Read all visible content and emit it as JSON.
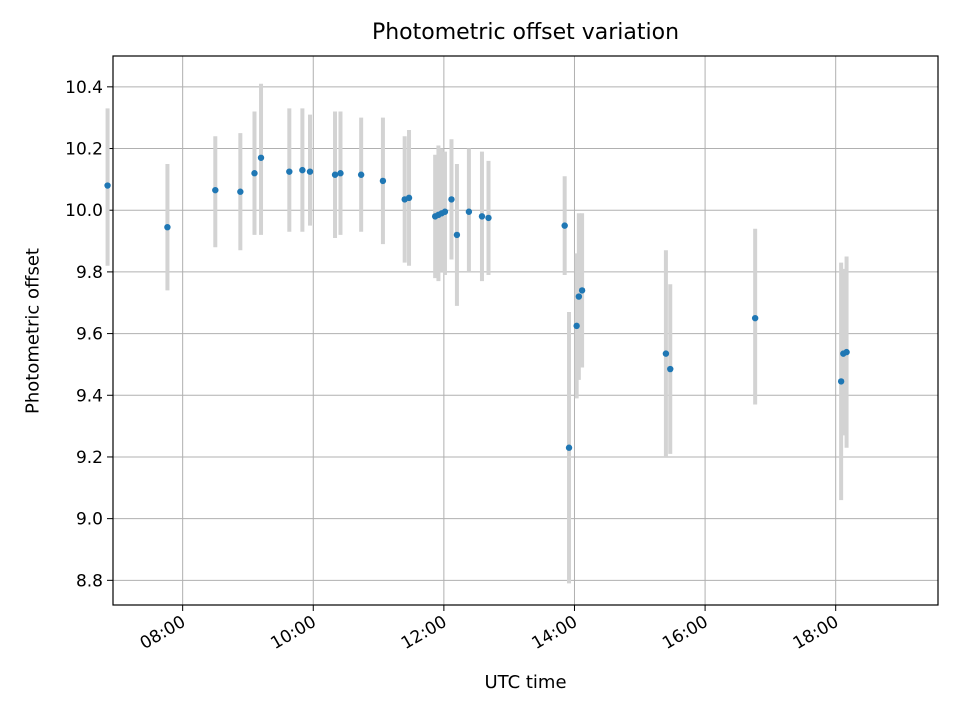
{
  "chart_data": {
    "type": "scatter",
    "title": "Photometric offset variation",
    "xlabel": "UTC time",
    "ylabel": "Photometric offset",
    "xlim": [
      "06:56",
      "19:34"
    ],
    "ylim": [
      8.72,
      10.5
    ],
    "x_ticks": [
      "08:00",
      "10:00",
      "12:00",
      "14:00",
      "16:00",
      "18:00"
    ],
    "y_ticks": [
      "8.8",
      "9.0",
      "9.2",
      "9.4",
      "9.6",
      "9.8",
      "10.0",
      "10.2",
      "10.4"
    ],
    "grid": true,
    "marker_color": "#1f77b4",
    "errorbar_color": "#d3d3d3",
    "points": [
      {
        "x": "06:51",
        "y": 10.08,
        "ylow": 9.82,
        "yhigh": 10.33
      },
      {
        "x": "07:46",
        "y": 9.945,
        "ylow": 9.74,
        "yhigh": 10.15
      },
      {
        "x": "08:30",
        "y": 10.065,
        "ylow": 9.88,
        "yhigh": 10.24
      },
      {
        "x": "08:53",
        "y": 10.06,
        "ylow": 9.87,
        "yhigh": 10.25
      },
      {
        "x": "09:06",
        "y": 10.12,
        "ylow": 9.92,
        "yhigh": 10.32
      },
      {
        "x": "09:12",
        "y": 10.17,
        "ylow": 9.92,
        "yhigh": 10.41
      },
      {
        "x": "09:38",
        "y": 10.125,
        "ylow": 9.93,
        "yhigh": 10.33
      },
      {
        "x": "09:50",
        "y": 10.13,
        "ylow": 9.93,
        "yhigh": 10.33
      },
      {
        "x": "09:57",
        "y": 10.125,
        "ylow": 9.95,
        "yhigh": 10.31
      },
      {
        "x": "10:20",
        "y": 10.115,
        "ylow": 9.91,
        "yhigh": 10.32
      },
      {
        "x": "10:25",
        "y": 10.12,
        "ylow": 9.92,
        "yhigh": 10.32
      },
      {
        "x": "10:44",
        "y": 10.115,
        "ylow": 9.93,
        "yhigh": 10.3
      },
      {
        "x": "11:04",
        "y": 10.095,
        "ylow": 9.89,
        "yhigh": 10.3
      },
      {
        "x": "11:24",
        "y": 10.035,
        "ylow": 9.83,
        "yhigh": 10.24
      },
      {
        "x": "11:28",
        "y": 10.04,
        "ylow": 9.82,
        "yhigh": 10.26
      },
      {
        "x": "11:52",
        "y": 9.98,
        "ylow": 9.78,
        "yhigh": 10.18
      },
      {
        "x": "11:55",
        "y": 9.985,
        "ylow": 9.77,
        "yhigh": 10.21
      },
      {
        "x": "11:58",
        "y": 9.99,
        "ylow": 9.8,
        "yhigh": 10.2
      },
      {
        "x": "12:01",
        "y": 9.995,
        "ylow": 9.79,
        "yhigh": 10.19
      },
      {
        "x": "12:07",
        "y": 10.035,
        "ylow": 9.84,
        "yhigh": 10.23
      },
      {
        "x": "12:12",
        "y": 9.92,
        "ylow": 9.69,
        "yhigh": 10.15
      },
      {
        "x": "12:23",
        "y": 9.995,
        "ylow": 9.8,
        "yhigh": 10.2
      },
      {
        "x": "12:35",
        "y": 9.98,
        "ylow": 9.77,
        "yhigh": 10.19
      },
      {
        "x": "12:41",
        "y": 9.975,
        "ylow": 9.79,
        "yhigh": 10.16
      },
      {
        "x": "13:51",
        "y": 9.95,
        "ylow": 9.79,
        "yhigh": 10.11
      },
      {
        "x": "13:55",
        "y": 9.23,
        "ylow": 8.79,
        "yhigh": 9.67
      },
      {
        "x": "14:02",
        "y": 9.625,
        "ylow": 9.39,
        "yhigh": 9.86
      },
      {
        "x": "14:04",
        "y": 9.72,
        "ylow": 9.45,
        "yhigh": 9.99
      },
      {
        "x": "14:07",
        "y": 9.74,
        "ylow": 9.49,
        "yhigh": 9.99
      },
      {
        "x": "15:24",
        "y": 9.535,
        "ylow": 9.2,
        "yhigh": 9.87
      },
      {
        "x": "15:28",
        "y": 9.485,
        "ylow": 9.21,
        "yhigh": 9.76
      },
      {
        "x": "16:46",
        "y": 9.65,
        "ylow": 9.37,
        "yhigh": 9.94
      },
      {
        "x": "18:05",
        "y": 9.445,
        "ylow": 9.06,
        "yhigh": 9.83
      },
      {
        "x": "18:07",
        "y": 9.535,
        "ylow": 9.27,
        "yhigh": 9.81
      },
      {
        "x": "18:10",
        "y": 9.54,
        "ylow": 9.23,
        "yhigh": 9.85
      }
    ]
  }
}
